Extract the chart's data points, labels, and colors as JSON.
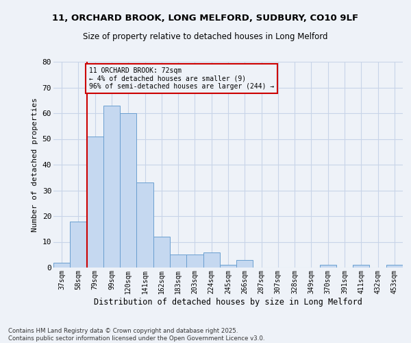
{
  "title_line1": "11, ORCHARD BROOK, LONG MELFORD, SUDBURY, CO10 9LF",
  "title_line2": "Size of property relative to detached houses in Long Melford",
  "xlabel": "Distribution of detached houses by size in Long Melford",
  "ylabel": "Number of detached properties",
  "categories": [
    "37sqm",
    "58sqm",
    "79sqm",
    "99sqm",
    "120sqm",
    "141sqm",
    "162sqm",
    "183sqm",
    "203sqm",
    "224sqm",
    "245sqm",
    "266sqm",
    "287sqm",
    "307sqm",
    "328sqm",
    "349sqm",
    "370sqm",
    "391sqm",
    "411sqm",
    "432sqm",
    "453sqm"
  ],
  "values": [
    2,
    18,
    51,
    63,
    60,
    33,
    12,
    5,
    5,
    6,
    1,
    3,
    0,
    0,
    0,
    0,
    1,
    0,
    1,
    0,
    1
  ],
  "bar_color": "#c5d8f0",
  "bar_edge_color": "#6a9fd0",
  "vline_color": "#cc0000",
  "vline_x_index": 1.5,
  "annotation_text": "11 ORCHARD BROOK: 72sqm\n← 4% of detached houses are smaller (9)\n96% of semi-detached houses are larger (244) →",
  "annotation_box_color": "#cc0000",
  "ylim": [
    0,
    80
  ],
  "yticks": [
    0,
    10,
    20,
    30,
    40,
    50,
    60,
    70,
    80
  ],
  "grid_color": "#c8d4e8",
  "bg_color": "#eef2f8",
  "footnote": "Contains HM Land Registry data © Crown copyright and database right 2025.\nContains public sector information licensed under the Open Government Licence v3.0."
}
